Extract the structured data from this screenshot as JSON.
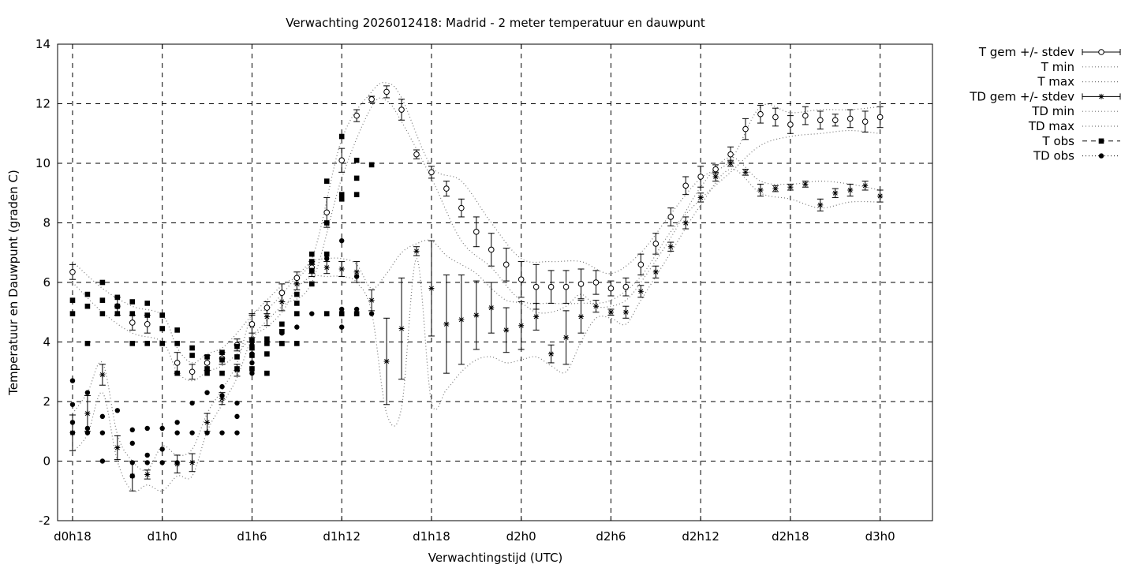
{
  "chart_data": {
    "type": "line",
    "title": "Verwachting 2026012418: Madrid - 2 meter temperatuur en dauwpunt",
    "xlabel": "Verwachtingstijd (UTC)",
    "ylabel": "Temperatuur en Dauwpunt (graden C)",
    "xlim": [
      17,
      75.5
    ],
    "ylim": [
      -2,
      14
    ],
    "x_ticks": [
      {
        "x": 18,
        "label": "d0h18"
      },
      {
        "x": 24,
        "label": "d1h0"
      },
      {
        "x": 30,
        "label": "d1h6"
      },
      {
        "x": 36,
        "label": "d1h12"
      },
      {
        "x": 42,
        "label": "d1h18"
      },
      {
        "x": 48,
        "label": "d2h0"
      },
      {
        "x": 54,
        "label": "d2h6"
      },
      {
        "x": 60,
        "label": "d2h12"
      },
      {
        "x": 66,
        "label": "d2h18"
      },
      {
        "x": 72,
        "label": "d3h0"
      }
    ],
    "y_ticks": [
      -2,
      0,
      2,
      4,
      6,
      8,
      10,
      12,
      14
    ],
    "grid": true,
    "legend_position": "outside-right",
    "legend": [
      {
        "label": "T gem +/- stdev",
        "key": "t_mean"
      },
      {
        "label": "T min",
        "key": "t_min"
      },
      {
        "label": "T max",
        "key": "t_max"
      },
      {
        "label": "TD gem +/- stdev",
        "key": "td_mean"
      },
      {
        "label": "TD min",
        "key": "td_min"
      },
      {
        "label": "TD max",
        "key": "td_max"
      },
      {
        "label": "T obs",
        "key": "t_obs"
      },
      {
        "label": "TD obs",
        "key": "td_obs"
      }
    ],
    "t_mean": {
      "x": [
        18,
        21,
        22,
        23,
        25,
        26,
        27,
        28,
        29,
        30,
        31,
        32,
        33,
        34,
        35,
        36,
        37,
        38,
        39,
        40,
        41,
        42,
        43,
        44,
        45,
        46,
        47,
        48,
        49,
        50,
        51,
        52,
        53,
        54,
        55,
        56,
        57,
        58,
        59,
        60,
        61,
        62,
        63,
        64,
        65,
        66,
        67,
        68,
        69,
        70,
        71,
        72
      ],
      "y": [
        6.35,
        5.2,
        4.65,
        4.6,
        3.3,
        3.0,
        3.3,
        3.45,
        3.9,
        4.6,
        5.15,
        5.65,
        6.15,
        6.5,
        8.35,
        10.1,
        11.6,
        12.15,
        12.4,
        11.8,
        10.3,
        9.7,
        9.15,
        8.5,
        7.7,
        7.1,
        6.6,
        6.1,
        5.85,
        5.85,
        5.85,
        5.95,
        6.0,
        5.8,
        5.85,
        6.6,
        7.3,
        8.2,
        9.25,
        9.55,
        9.8,
        10.3,
        11.15,
        11.65,
        11.55,
        11.3,
        11.6,
        11.45,
        11.45,
        11.5,
        11.4,
        11.55
      ],
      "stdev": [
        0.25,
        0.3,
        0.25,
        0.3,
        0.35,
        0.25,
        0.25,
        0.2,
        0.2,
        0.3,
        0.2,
        0.3,
        0.2,
        0.2,
        0.5,
        0.4,
        0.2,
        0.1,
        0.2,
        0.35,
        0.15,
        0.2,
        0.25,
        0.3,
        0.5,
        0.55,
        0.55,
        0.6,
        0.75,
        0.55,
        0.55,
        0.5,
        0.4,
        0.25,
        0.3,
        0.35,
        0.35,
        0.3,
        0.3,
        0.35,
        0.15,
        0.25,
        0.35,
        0.3,
        0.3,
        0.3,
        0.3,
        0.3,
        0.2,
        0.3,
        0.35,
        0.35
      ]
    },
    "t_min": {
      "x": [
        18,
        20,
        22,
        24,
        25,
        26,
        27,
        28,
        29,
        30,
        32,
        34,
        36,
        38,
        39,
        40,
        42,
        44,
        46,
        48,
        50,
        52,
        54,
        56,
        58,
        60,
        62,
        64,
        66,
        68,
        70,
        72
      ],
      "y": [
        6.0,
        5.0,
        4.3,
        4.0,
        3.0,
        2.7,
        3.0,
        3.2,
        3.6,
        4.2,
        5.2,
        6.0,
        9.5,
        11.9,
        12.1,
        11.4,
        9.5,
        7.4,
        6.5,
        5.4,
        5.3,
        5.3,
        5.4,
        6.2,
        7.7,
        8.8,
        9.7,
        10.6,
        10.9,
        11.0,
        11.1,
        11.0
      ]
    },
    "t_max": {
      "x": [
        18,
        20,
        22,
        24,
        25,
        26,
        27,
        28,
        29,
        30,
        32,
        34,
        36,
        38,
        39,
        40,
        42,
        44,
        46,
        48,
        50,
        52,
        54,
        56,
        58,
        60,
        62,
        64,
        66,
        68,
        70,
        72
      ],
      "y": [
        6.7,
        5.8,
        5.2,
        4.9,
        3.8,
        3.3,
        3.6,
        3.8,
        4.3,
        4.9,
        5.9,
        6.8,
        10.8,
        12.4,
        12.7,
        12.2,
        9.9,
        9.4,
        8.0,
        6.8,
        6.7,
        6.7,
        6.3,
        7.0,
        8.3,
        9.5,
        10.1,
        11.9,
        11.7,
        11.8,
        11.8,
        11.9
      ]
    },
    "td_mean": {
      "x": [
        18,
        19,
        20,
        21,
        22,
        23,
        25,
        26,
        27,
        28,
        29,
        30,
        31,
        32,
        33,
        34,
        35,
        36,
        37,
        38,
        39,
        40,
        41,
        42,
        43,
        44,
        45,
        46,
        47,
        48,
        49,
        50,
        51,
        52,
        53,
        54,
        55,
        56,
        57,
        58,
        59,
        60,
        61,
        62,
        63,
        64,
        65,
        66,
        67,
        68,
        69,
        70,
        71,
        72
      ],
      "y": [
        0.95,
        1.6,
        2.9,
        0.45,
        -0.5,
        -0.45,
        -0.1,
        -0.05,
        1.3,
        2.1,
        3.05,
        4.55,
        4.85,
        5.35,
        5.95,
        6.4,
        6.5,
        6.45,
        6.35,
        5.4,
        3.35,
        4.45,
        7.05,
        5.8,
        4.6,
        4.75,
        4.9,
        5.15,
        4.4,
        4.55,
        4.85,
        3.6,
        4.15,
        4.85,
        5.2,
        5.0,
        5.0,
        5.7,
        6.35,
        7.2,
        8.0,
        8.85,
        9.55,
        10.0,
        9.7,
        9.1,
        9.15,
        9.2,
        9.3,
        8.6,
        9.0,
        9.1,
        9.25,
        8.9
      ],
      "stdev": [
        0.6,
        0.6,
        0.35,
        0.4,
        0.5,
        0.15,
        0.3,
        0.3,
        0.3,
        0.2,
        0.2,
        0.4,
        0.3,
        0.3,
        0.2,
        0.2,
        0.2,
        0.25,
        0.35,
        0.35,
        1.45,
        1.7,
        0.15,
        1.6,
        1.65,
        1.5,
        1.15,
        0.85,
        0.75,
        0.8,
        0.45,
        0.3,
        0.9,
        0.55,
        0.2,
        0.1,
        0.2,
        0.2,
        0.2,
        0.15,
        0.2,
        0.15,
        0.15,
        0.1,
        0.1,
        0.2,
        0.1,
        0.1,
        0.1,
        0.2,
        0.15,
        0.2,
        0.15,
        0.2
      ]
    },
    "td_min": {
      "x": [
        18,
        19,
        20,
        21,
        22,
        23,
        24,
        25,
        26,
        27,
        28,
        29,
        30,
        31,
        32,
        33,
        34,
        35,
        36,
        37,
        38,
        39,
        40,
        41,
        42,
        43,
        44,
        45,
        46,
        47,
        48,
        49,
        50,
        51,
        52,
        53,
        54,
        55,
        56,
        58,
        60,
        62,
        64,
        66,
        68,
        70,
        72
      ],
      "y": [
        0.3,
        0.9,
        2.3,
        0.0,
        -1.0,
        -0.8,
        -1.0,
        -0.5,
        -0.5,
        1.0,
        1.9,
        2.8,
        4.1,
        4.5,
        5.0,
        5.8,
        6.2,
        6.2,
        6.2,
        6.0,
        5.0,
        1.6,
        1.8,
        6.8,
        2.0,
        2.4,
        3.0,
        3.4,
        3.5,
        3.3,
        3.4,
        3.5,
        3.2,
        3.0,
        4.0,
        4.8,
        4.8,
        4.6,
        5.4,
        7.0,
        8.6,
        9.8,
        9.0,
        8.8,
        8.5,
        8.7,
        8.7
      ]
    },
    "td_max": {
      "x": [
        18,
        19,
        20,
        21,
        22,
        23,
        24,
        25,
        26,
        27,
        28,
        29,
        30,
        31,
        32,
        33,
        34,
        35,
        36,
        37,
        38,
        39,
        40,
        41,
        42,
        43,
        44,
        45,
        46,
        47,
        48,
        49,
        50,
        51,
        52,
        53,
        54,
        55,
        56,
        58,
        60,
        62,
        64,
        66,
        68,
        70,
        72
      ],
      "y": [
        1.6,
        2.3,
        3.3,
        0.9,
        0.0,
        -0.3,
        0.5,
        0.2,
        0.4,
        1.6,
        2.4,
        3.3,
        4.9,
        5.1,
        5.6,
        6.2,
        6.7,
        6.8,
        6.8,
        6.6,
        5.8,
        6.3,
        7.0,
        7.3,
        7.4,
        6.9,
        6.6,
        6.3,
        5.8,
        5.4,
        5.3,
        5.0,
        5.0,
        5.2,
        5.6,
        5.2,
        5.2,
        5.4,
        6.0,
        7.5,
        9.2,
        10.2,
        9.4,
        9.3,
        9.4,
        9.3,
        9.1
      ]
    },
    "t_obs": {
      "x": [
        18,
        18,
        19,
        19,
        19,
        20,
        20,
        20,
        21,
        21,
        21,
        22,
        22,
        22,
        23,
        23,
        23,
        24,
        24,
        24,
        25,
        25,
        25,
        26,
        26,
        27,
        27,
        27,
        28,
        28,
        28,
        29,
        29,
        29,
        30,
        30,
        30,
        30,
        31,
        31,
        31,
        31,
        32,
        32,
        32,
        32,
        33,
        33,
        33,
        33,
        34,
        34,
        34,
        34,
        35,
        35,
        35,
        35,
        36,
        36,
        36,
        36,
        37,
        37,
        37,
        37,
        38
      ],
      "y": [
        5.4,
        4.95,
        5.6,
        5.2,
        3.95,
        6.0,
        5.4,
        4.95,
        5.5,
        5.2,
        4.95,
        5.35,
        4.95,
        3.95,
        5.3,
        4.9,
        3.95,
        4.9,
        4.45,
        3.95,
        4.4,
        3.95,
        2.95,
        3.8,
        3.55,
        3.5,
        3.1,
        2.95,
        3.65,
        3.4,
        2.95,
        3.85,
        3.5,
        3.1,
        4.05,
        3.8,
        3.55,
        3.1,
        4.1,
        3.95,
        3.6,
        2.95,
        4.6,
        4.35,
        3.95,
        3.95,
        5.6,
        5.3,
        4.95,
        3.95,
        6.95,
        6.7,
        6.4,
        5.95,
        9.4,
        8.0,
        6.95,
        4.95,
        10.9,
        8.95,
        8.8,
        4.95,
        10.1,
        9.5,
        8.95,
        4.95,
        9.95
      ]
    },
    "td_obs": {
      "x": [
        18,
        18,
        18,
        18,
        19,
        19,
        19,
        20,
        20,
        20,
        21,
        22,
        22,
        22,
        22,
        23,
        23,
        23,
        24,
        24,
        24,
        25,
        25,
        25,
        26,
        26,
        27,
        27,
        28,
        28,
        28,
        29,
        29,
        29,
        30,
        30,
        30,
        30,
        31,
        31,
        31,
        32,
        32,
        33,
        33,
        34,
        34,
        35,
        35,
        36,
        36,
        36,
        37,
        37,
        37,
        38
      ],
      "y": [
        2.7,
        1.9,
        1.3,
        0.95,
        2.3,
        1.1,
        0.95,
        1.5,
        0.95,
        0.0,
        1.7,
        1.05,
        0.6,
        -0.05,
        -0.5,
        1.1,
        0.2,
        -0.05,
        1.1,
        0.4,
        -0.05,
        1.3,
        0.95,
        -0.05,
        1.95,
        0.95,
        2.3,
        0.95,
        2.5,
        2.2,
        0.95,
        1.95,
        1.5,
        0.95,
        3.9,
        3.6,
        3.3,
        2.95,
        3.95,
        3.6,
        2.95,
        4.3,
        3.95,
        4.5,
        3.95,
        6.4,
        4.95,
        6.8,
        4.95,
        7.4,
        5.1,
        4.5,
        6.2,
        5.1,
        4.95,
        4.95
      ]
    }
  }
}
